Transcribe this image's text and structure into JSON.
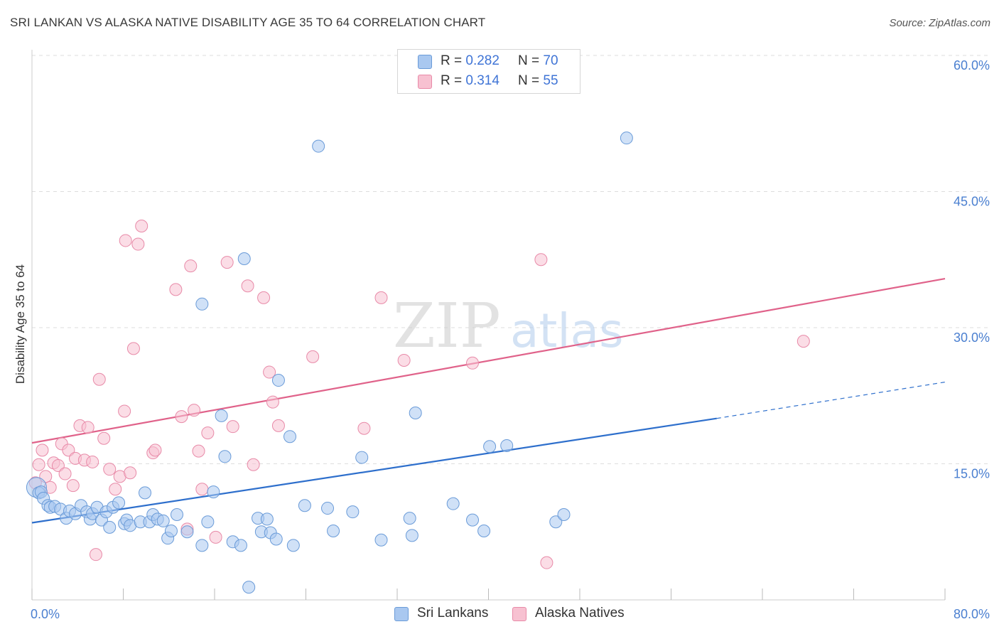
{
  "title": "SRI LANKAN VS ALASKA NATIVE DISABILITY AGE 35 TO 64 CORRELATION CHART",
  "source": "Source: ZipAtlas.com",
  "watermark": {
    "zip": "ZIP",
    "atlas": "atlas"
  },
  "legend_top": [
    {
      "r_label": "R =",
      "r_value": "0.282",
      "n_label": "N =",
      "n_value": "70"
    },
    {
      "r_label": "R =",
      "r_value": "0.314",
      "n_label": "N =",
      "n_value": "55"
    }
  ],
  "legend_bottom": [
    "Sri Lankans",
    "Alaska Natives"
  ],
  "colors": {
    "blue_fill": "#a9c8f0",
    "blue_stroke": "#6a9bd8",
    "blue_line": "#2e6fcc",
    "pink_fill": "#f7c1d1",
    "pink_stroke": "#e88aa8",
    "pink_line": "#e0628a",
    "grid": "#dddddd",
    "axis_text": "#4a7fd0"
  },
  "chart_data": {
    "type": "scatter",
    "title": "SRI LANKAN VS ALASKA NATIVE DISABILITY AGE 35 TO 64 CORRELATION CHART",
    "xlabel": "",
    "ylabel": "Disability Age 35 to 64",
    "xlim": [
      0,
      80
    ],
    "ylim": [
      0,
      60
    ],
    "x_tick_labels": [
      {
        "value": 0,
        "label": "0.0%"
      },
      {
        "value": 80,
        "label": "80.0%"
      }
    ],
    "y_tick_labels": [
      {
        "value": 15,
        "label": "15.0%"
      },
      {
        "value": 30,
        "label": "30.0%"
      },
      {
        "value": 45,
        "label": "45.0%"
      },
      {
        "value": 60,
        "label": "60.0%"
      }
    ],
    "y_gridlines": [
      15,
      30,
      45,
      60
    ],
    "series": [
      {
        "name": "Sri Lankans",
        "color": "blue",
        "R": 0.282,
        "N": 70,
        "trend": {
          "x0": 0,
          "y0": 8.5,
          "x1": 60,
          "y1": 20,
          "dashed_to_x": 80,
          "dashed_to_y": 24
        },
        "points": [
          [
            0.4,
            12.4
          ],
          [
            0.6,
            11.8
          ],
          [
            0.8,
            11.9
          ],
          [
            1.0,
            11.2
          ],
          [
            1.4,
            10.4
          ],
          [
            1.6,
            10.2
          ],
          [
            2.0,
            10.3
          ],
          [
            2.5,
            10.0
          ],
          [
            3.0,
            9.0
          ],
          [
            3.3,
            9.8
          ],
          [
            3.8,
            9.5
          ],
          [
            4.3,
            10.4
          ],
          [
            4.8,
            9.7
          ],
          [
            5.1,
            8.9
          ],
          [
            5.3,
            9.5
          ],
          [
            5.7,
            10.2
          ],
          [
            6.1,
            8.8
          ],
          [
            6.5,
            9.7
          ],
          [
            6.8,
            8.0
          ],
          [
            7.1,
            10.2
          ],
          [
            7.6,
            10.7
          ],
          [
            8.1,
            8.4
          ],
          [
            8.3,
            8.8
          ],
          [
            8.6,
            8.2
          ],
          [
            9.5,
            8.6
          ],
          [
            9.9,
            11.8
          ],
          [
            10.3,
            8.6
          ],
          [
            10.6,
            9.4
          ],
          [
            11.0,
            8.9
          ],
          [
            11.5,
            8.7
          ],
          [
            11.9,
            6.8
          ],
          [
            12.2,
            7.6
          ],
          [
            12.7,
            9.4
          ],
          [
            13.6,
            7.5
          ],
          [
            14.9,
            6.0
          ],
          [
            15.4,
            8.6
          ],
          [
            15.9,
            11.9
          ],
          [
            16.9,
            15.8
          ],
          [
            17.6,
            6.4
          ],
          [
            18.3,
            6.0
          ],
          [
            19.0,
            1.4
          ],
          [
            19.8,
            9.0
          ],
          [
            20.1,
            7.5
          ],
          [
            20.6,
            8.9
          ],
          [
            20.9,
            7.4
          ],
          [
            21.4,
            6.7
          ],
          [
            22.9,
            6.0
          ],
          [
            23.9,
            10.4
          ],
          [
            25.9,
            10.1
          ],
          [
            26.4,
            7.6
          ],
          [
            28.1,
            9.7
          ],
          [
            28.9,
            15.7
          ],
          [
            30.6,
            6.6
          ],
          [
            33.1,
            9.0
          ],
          [
            33.3,
            7.1
          ],
          [
            36.9,
            10.6
          ],
          [
            38.6,
            8.8
          ],
          [
            39.6,
            7.6
          ],
          [
            40.1,
            16.9
          ],
          [
            41.6,
            17.0
          ],
          [
            45.9,
            8.6
          ],
          [
            46.6,
            9.4
          ],
          [
            33.6,
            20.6
          ],
          [
            21.6,
            24.2
          ],
          [
            22.6,
            18.0
          ],
          [
            14.9,
            32.6
          ],
          [
            18.6,
            37.6
          ],
          [
            16.6,
            20.3
          ],
          [
            25.1,
            50.0
          ],
          [
            52.1,
            50.9
          ]
        ]
      },
      {
        "name": "Alaska Natives",
        "color": "pink",
        "R": 0.314,
        "N": 55,
        "trend": {
          "x0": 0,
          "y0": 17.3,
          "x1": 80,
          "y1": 35.4
        },
        "points": [
          [
            0.3,
            12.9
          ],
          [
            0.6,
            14.9
          ],
          [
            0.9,
            16.5
          ],
          [
            1.2,
            13.6
          ],
          [
            1.6,
            12.4
          ],
          [
            1.9,
            15.1
          ],
          [
            2.3,
            14.8
          ],
          [
            2.6,
            17.2
          ],
          [
            2.9,
            13.9
          ],
          [
            3.2,
            16.5
          ],
          [
            3.6,
            12.6
          ],
          [
            3.8,
            15.6
          ],
          [
            4.2,
            19.2
          ],
          [
            4.6,
            15.4
          ],
          [
            4.9,
            19.0
          ],
          [
            5.3,
            15.2
          ],
          [
            5.6,
            5.0
          ],
          [
            5.9,
            24.3
          ],
          [
            6.3,
            17.8
          ],
          [
            6.8,
            14.4
          ],
          [
            7.3,
            12.2
          ],
          [
            7.7,
            13.6
          ],
          [
            8.1,
            20.8
          ],
          [
            8.2,
            39.6
          ],
          [
            8.6,
            14.0
          ],
          [
            8.9,
            27.7
          ],
          [
            9.3,
            39.2
          ],
          [
            9.6,
            41.2
          ],
          [
            10.6,
            16.2
          ],
          [
            10.8,
            16.5
          ],
          [
            12.6,
            34.2
          ],
          [
            13.1,
            20.2
          ],
          [
            13.6,
            7.8
          ],
          [
            13.9,
            36.8
          ],
          [
            14.2,
            20.9
          ],
          [
            14.6,
            16.4
          ],
          [
            14.9,
            12.2
          ],
          [
            15.4,
            18.4
          ],
          [
            16.1,
            6.9
          ],
          [
            17.1,
            37.2
          ],
          [
            17.6,
            19.1
          ],
          [
            18.9,
            34.6
          ],
          [
            19.4,
            14.9
          ],
          [
            20.3,
            33.3
          ],
          [
            20.8,
            25.1
          ],
          [
            21.1,
            21.8
          ],
          [
            21.6,
            19.2
          ],
          [
            24.6,
            26.8
          ],
          [
            29.1,
            18.9
          ],
          [
            30.6,
            33.3
          ],
          [
            32.6,
            26.4
          ],
          [
            38.6,
            26.1
          ],
          [
            44.6,
            37.5
          ],
          [
            45.1,
            4.1
          ],
          [
            67.6,
            28.5
          ]
        ]
      }
    ]
  }
}
